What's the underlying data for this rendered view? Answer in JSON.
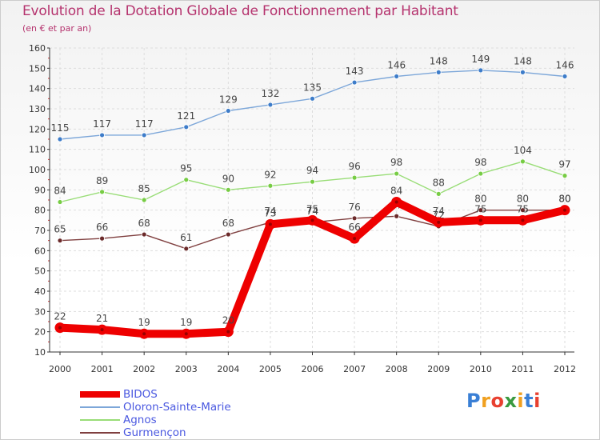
{
  "title": "Evolution de la Dotation Globale de Fonctionnement par Habitant",
  "subtitle": "(en € et par an)",
  "logo": "Proxiti",
  "colors": {
    "title": "#b5336e",
    "legend_text": "#4a58e0",
    "axis": "#333333",
    "grid": "#dddddd"
  },
  "chart_data": {
    "type": "line",
    "title": "Evolution de la Dotation Globale de Fonctionnement par Habitant",
    "subtitle": "(en € et par an)",
    "xlabel": "",
    "ylabel": "",
    "ylim": [
      10,
      160
    ],
    "y_ticks": [
      10,
      20,
      30,
      40,
      50,
      60,
      70,
      80,
      90,
      100,
      110,
      120,
      130,
      140,
      150,
      160
    ],
    "grid": true,
    "legend_position": "bottom-left",
    "categories": [
      "2000",
      "2001",
      "2002",
      "2003",
      "2004",
      "2005",
      "2006",
      "2007",
      "2008",
      "2009",
      "2010",
      "2011",
      "2012"
    ],
    "series": [
      {
        "name": "Oloron-Sainte-Marie",
        "color": "#7da7d9",
        "marker": "#3d7cc9",
        "values": [
          115,
          117,
          117,
          121,
          129,
          132,
          135,
          143,
          146,
          148,
          149,
          148,
          146
        ]
      },
      {
        "name": "Agnos",
        "color": "#99dd77",
        "marker": "#77cc44",
        "values": [
          84,
          89,
          85,
          95,
          90,
          92,
          94,
          96,
          98,
          88,
          98,
          104,
          97
        ]
      },
      {
        "name": "Gurmençon",
        "color": "#804040",
        "marker": "#6b2a2a",
        "values": [
          65,
          66,
          68,
          61,
          68,
          74,
          74,
          76,
          77,
          72,
          80,
          80,
          80
        ]
      },
      {
        "name": "BIDOS",
        "color": "#ee0000",
        "marker": "#ee0000",
        "bold": true,
        "values": [
          22,
          21,
          19,
          19,
          20,
          73,
          75,
          66,
          84,
          74,
          75,
          75,
          80
        ]
      }
    ],
    "legend": [
      "BIDOS",
      "Oloron-Sainte-Marie",
      "Agnos",
      "Gurmençon"
    ]
  }
}
